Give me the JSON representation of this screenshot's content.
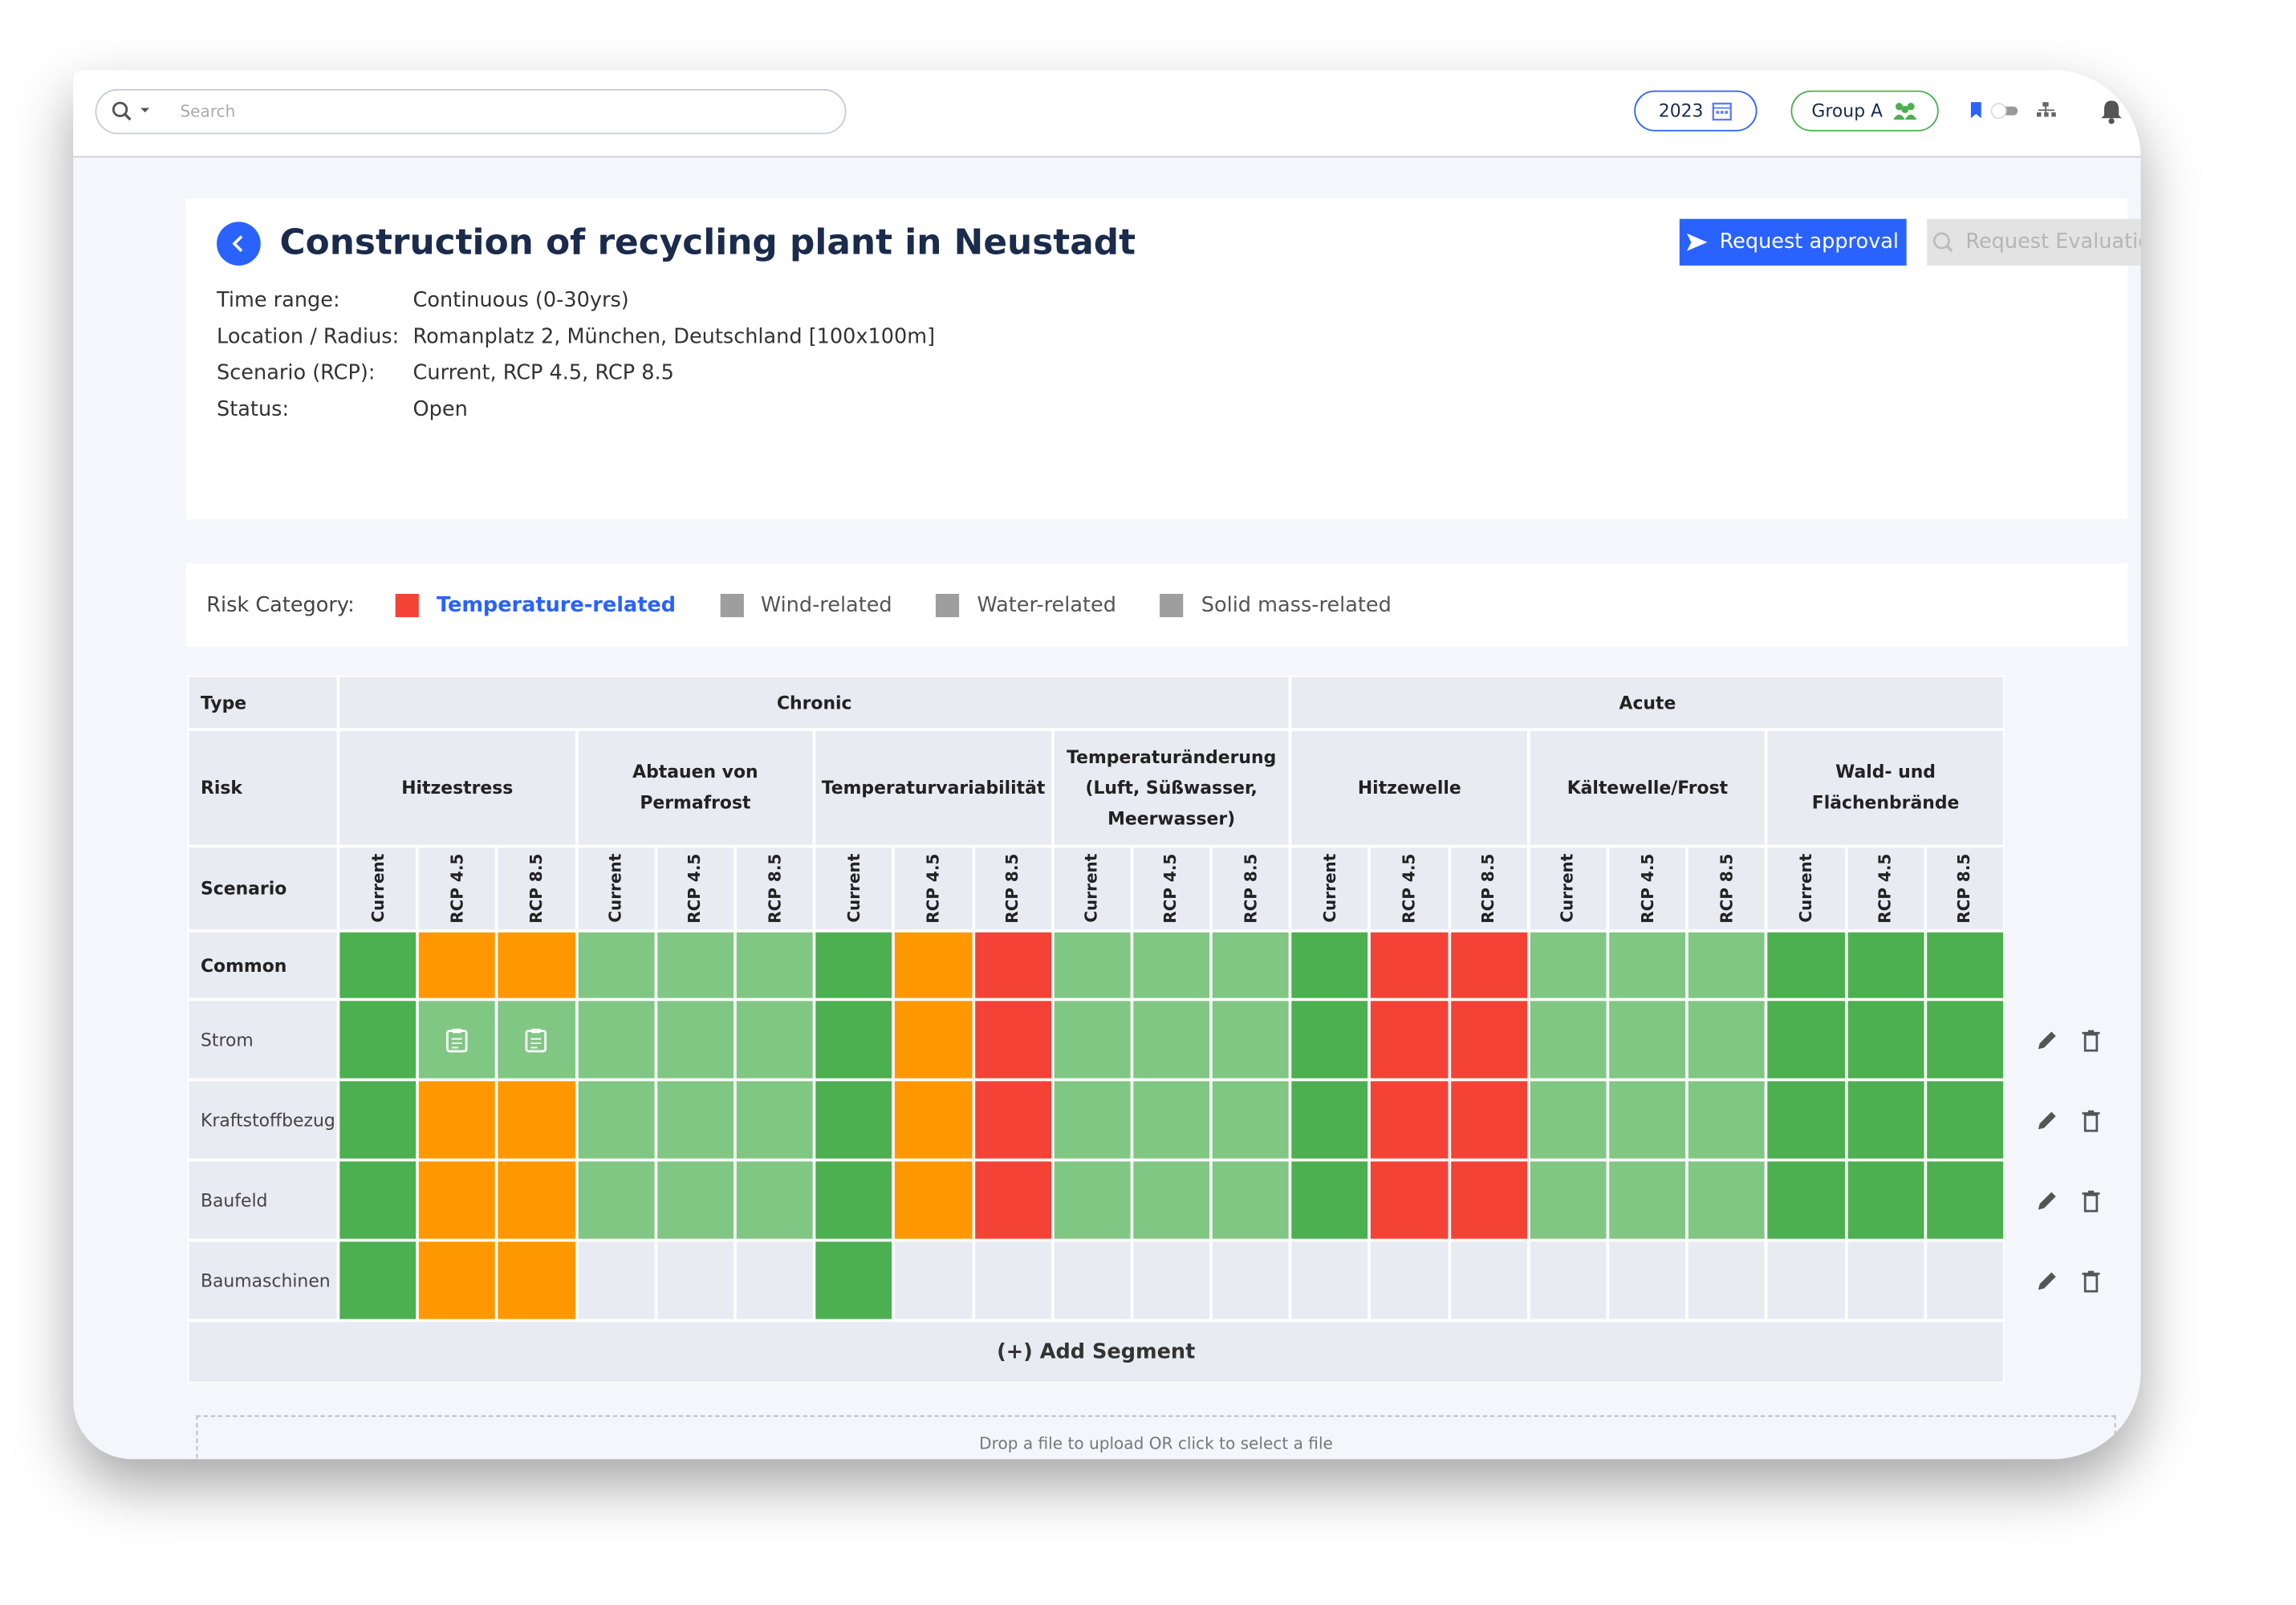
{
  "search": {
    "placeholder": "Search"
  },
  "topbar": {
    "year": "2023",
    "group": "Group A"
  },
  "header": {
    "title": "Construction of recycling plant in Neustadt",
    "buttons": [
      "Request approval",
      "Request Evaluation"
    ],
    "info": [
      {
        "label": "Time range:",
        "value": "Continuous (0-30yrs)"
      },
      {
        "label": "Location / Radius:",
        "value": "Romanplatz 2, München, Deutschland [100x100m]"
      },
      {
        "label": "Scenario (RCP):",
        "value": "Current, RCP 4.5, RCP 8.5"
      },
      {
        "label": "Status:",
        "value": "Open"
      }
    ]
  },
  "risk_category": {
    "label": "Risk Category:",
    "items": [
      {
        "label": "Temperature-related",
        "color": "#f44336",
        "active": true
      },
      {
        "label": "Wind-related",
        "color": "#9e9e9e",
        "active": false
      },
      {
        "label": "Water-related",
        "color": "#9e9e9e",
        "active": false
      },
      {
        "label": "Solid mass-related",
        "color": "#9e9e9e",
        "active": false
      }
    ]
  },
  "table": {
    "row_headers": [
      "Type",
      "Risk",
      "Scenario"
    ],
    "types": [
      {
        "label": "Chronic",
        "span": 12
      },
      {
        "label": "Acute",
        "span": 9
      }
    ],
    "risks": [
      "Hitzestress",
      "Abtauen von Permafrost",
      "Temperaturvariabilität",
      "Temperaturänderung (Luft, Süßwasser, Meerwasser)",
      "Hitzewelle",
      "Kältewelle/Frost",
      "Wald- und Flächenbrände"
    ],
    "scenarios": [
      "Current",
      "RCP 4.5",
      "RCP 8.5",
      "Current",
      "RCP 4.5",
      "RCP 8.5",
      "Current",
      "RCP 4.5",
      "RCP 8.5",
      "Current",
      "RCP 4.5",
      "RCP 8.5",
      "Current",
      "RCP 4.5",
      "RCP 8.5",
      "Current",
      "RCP 4.5",
      "RCP 8.5",
      "Current",
      "RCP 4.5",
      "RCP 8.5"
    ],
    "rows": [
      {
        "label": "Common",
        "cells": [
          "#4caf50",
          "#ff9800",
          "#ff9800",
          "#81c784",
          "#81c784",
          "#81c784",
          "#4caf50",
          "#ff9800",
          "#f44336",
          "#81c784",
          "#81c784",
          "#81c784",
          "#4caf50",
          "#f44336",
          "#f44336",
          "#81c784",
          "#81c784",
          "#81c784",
          "#4caf50",
          "#4caf50",
          "#4caf50"
        ]
      },
      {
        "label": "Strom",
        "cells": [
          "#4caf50",
          {
            "color": "#81c784",
            "icon": "clipboard"
          },
          {
            "color": "#81c784",
            "icon": "clipboard"
          },
          "#81c784",
          "#81c784",
          "#81c784",
          "#4caf50",
          "#ff9800",
          "#f44336",
          "#81c784",
          "#81c784",
          "#81c784",
          "#4caf50",
          "#f44336",
          "#f44336",
          "#81c784",
          "#81c784",
          "#81c784",
          "#4caf50",
          "#4caf50",
          "#4caf50"
        ]
      },
      {
        "label": "Kraftstoffbezug",
        "cells": [
          "#4caf50",
          "#ff9800",
          "#ff9800",
          "#81c784",
          "#81c784",
          "#81c784",
          "#4caf50",
          "#ff9800",
          "#f44336",
          "#81c784",
          "#81c784",
          "#81c784",
          "#4caf50",
          "#f44336",
          "#f44336",
          "#81c784",
          "#81c784",
          "#81c784",
          "#4caf50",
          "#4caf50",
          "#4caf50"
        ]
      },
      {
        "label": "Baufeld",
        "cells": [
          "#4caf50",
          "#ff9800",
          "#ff9800",
          "#81c784",
          "#81c784",
          "#81c784",
          "#4caf50",
          "#ff9800",
          "#f44336",
          "#81c784",
          "#81c784",
          "#81c784",
          "#4caf50",
          "#f44336",
          "#f44336",
          "#81c784",
          "#81c784",
          "#81c784",
          "#4caf50",
          "#4caf50",
          "#4caf50"
        ]
      },
      {
        "label": "Baumaschinen",
        "cells": [
          "#4caf50",
          "#ff9800",
          "#ff9800",
          null,
          null,
          null,
          "#4caf50",
          null,
          null,
          null,
          null,
          null,
          null,
          null,
          null,
          null,
          null,
          null,
          null,
          null,
          null
        ]
      }
    ],
    "add_segment": "(+) Add Segment"
  },
  "dropzone": "Drop a file to upload OR click to select a file"
}
